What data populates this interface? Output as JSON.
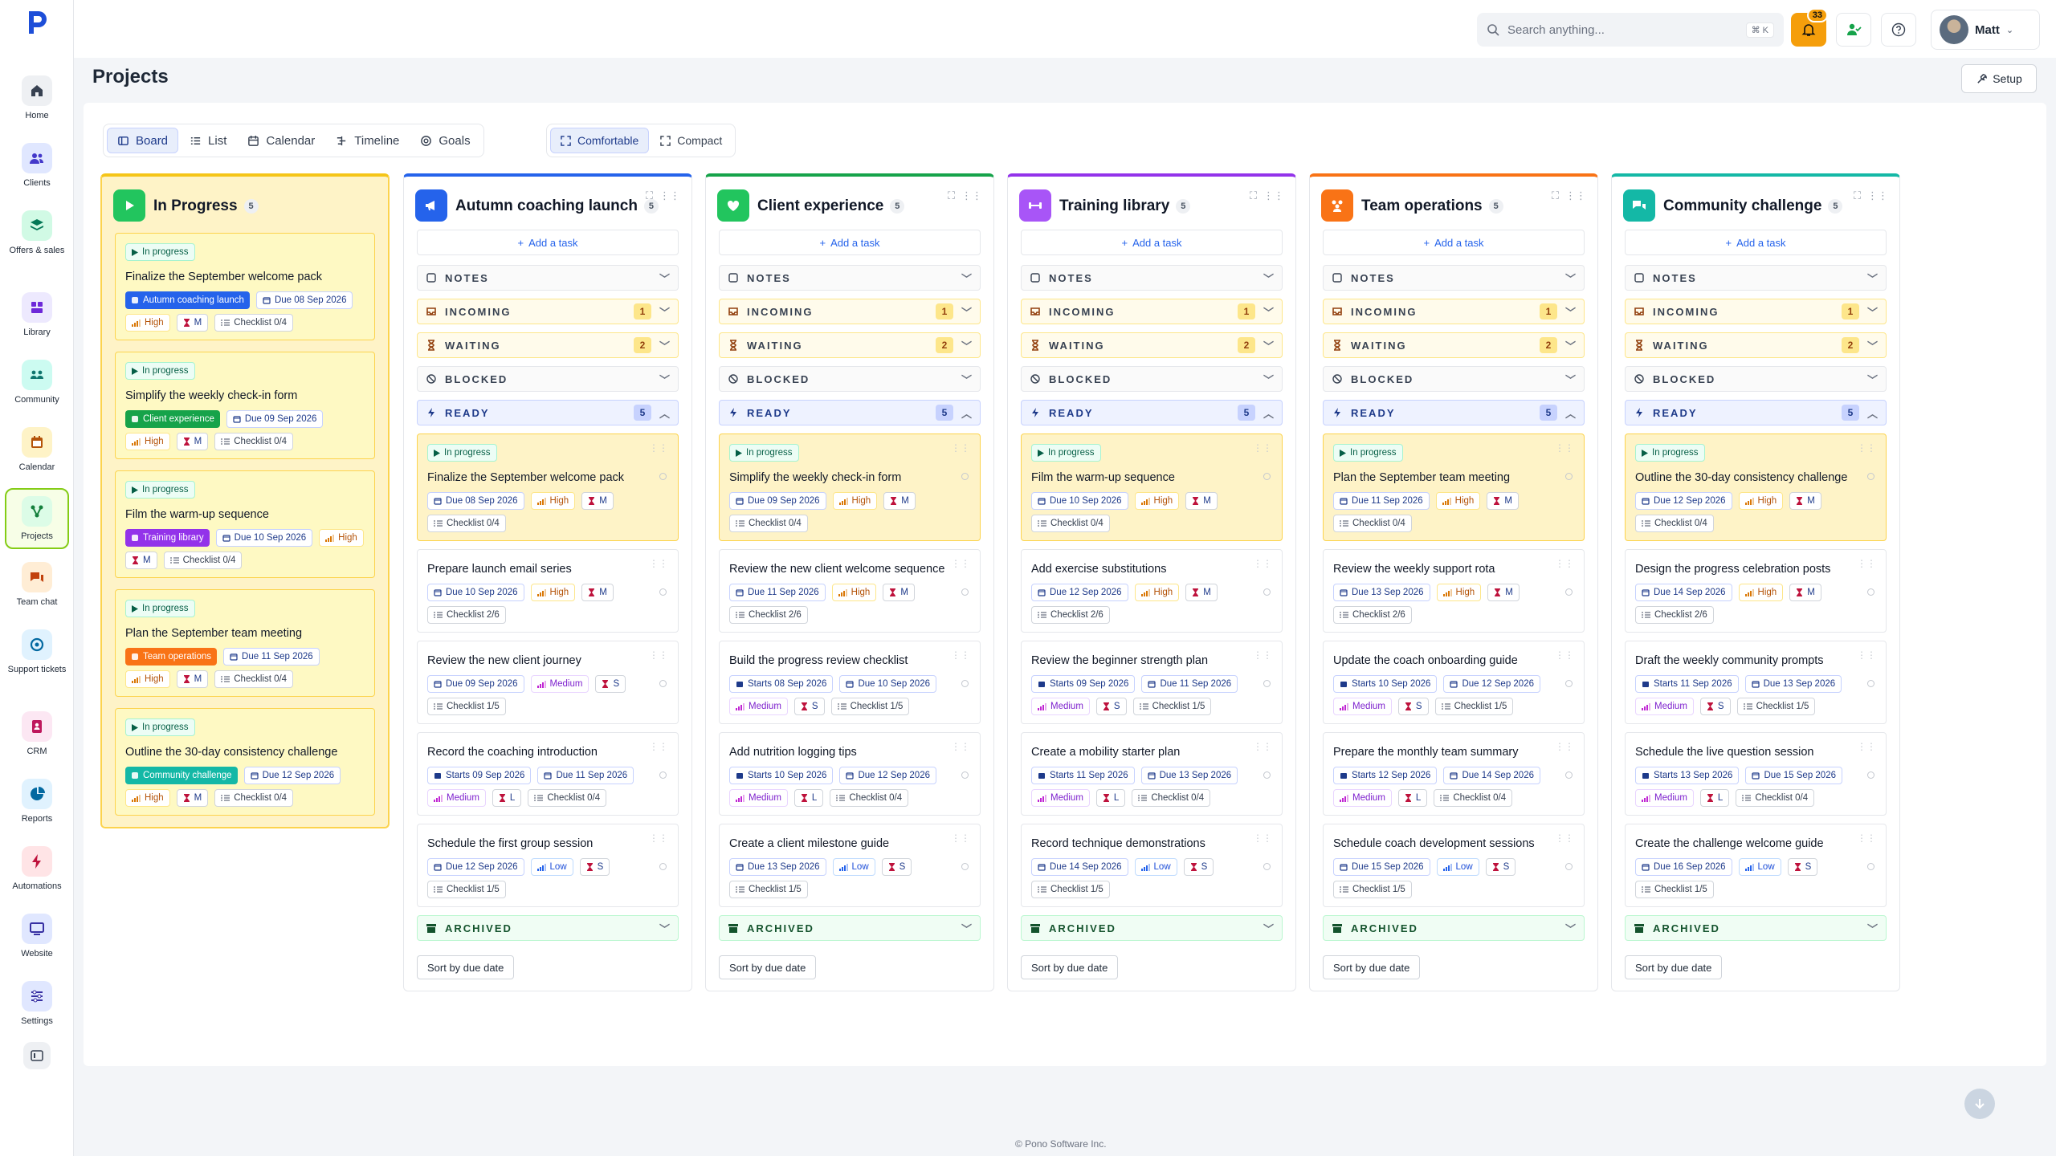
{
  "sidebar": {
    "items": [
      {
        "key": "home",
        "label": "Home",
        "tile": "#eef0f3",
        "fg": "#374151"
      },
      {
        "key": "clients",
        "label": "Clients",
        "tile": "#e0e7ff",
        "fg": "#4338ca"
      },
      {
        "key": "offers",
        "label": "Offers & sales",
        "tile": "#d1fae5",
        "fg": "#047857"
      },
      {
        "key": "library",
        "label": "Library",
        "tile": "#ede9fe",
        "fg": "#6d28d9"
      },
      {
        "key": "community",
        "label": "Community",
        "tile": "#ccfbf1",
        "fg": "#0f766e"
      },
      {
        "key": "calendar",
        "label": "Calendar",
        "tile": "#fef3c7",
        "fg": "#b45309"
      },
      {
        "key": "projects",
        "label": "Projects",
        "tile": "#dcfce7",
        "fg": "#15803d",
        "active": true
      },
      {
        "key": "team-chat",
        "label": "Team chat",
        "tile": "#ffedd5",
        "fg": "#c2410c"
      },
      {
        "key": "support",
        "label": "Support tickets",
        "tile": "#e0f2fe",
        "fg": "#0369a1"
      },
      {
        "key": "crm",
        "label": "CRM",
        "tile": "#fce7f3",
        "fg": "#be185d"
      },
      {
        "key": "reports",
        "label": "Reports",
        "tile": "#e0f2fe",
        "fg": "#0369a1"
      },
      {
        "key": "automations",
        "label": "Automations",
        "tile": "#ffe4e6",
        "fg": "#be123c"
      },
      {
        "key": "website",
        "label": "Website",
        "tile": "#e0e7ff",
        "fg": "#3730a3"
      },
      {
        "key": "settings",
        "label": "Settings",
        "tile": "#e0e7ff",
        "fg": "#3730a3"
      }
    ]
  },
  "topbar": {
    "search_placeholder": "Search anything...",
    "search_shortcut": "⌘ K",
    "notification_count": "33",
    "user_name": "Matt"
  },
  "page": {
    "title": "Projects",
    "setup_label": "Setup"
  },
  "views": [
    "Board",
    "List",
    "Calendar",
    "Timeline",
    "Goals"
  ],
  "density": [
    "Comfortable",
    "Compact"
  ],
  "labels": {
    "add_task": "Add a task",
    "notes": "NOTES",
    "incoming": "INCOMING",
    "waiting": "WAITING",
    "blocked": "BLOCKED",
    "ready": "READY",
    "archived": "ARCHIVED",
    "sort": "Sort by due date",
    "in_progress": "In progress"
  },
  "footer": "© Pono Software Inc.",
  "columns": [
    {
      "title": "In Progress",
      "count": "5",
      "accent": "#f5c518",
      "iconbg": "#22c55e",
      "featured": true,
      "cards": [
        {
          "status": "In progress",
          "title": "Finalize the September welcome pack",
          "project": "Autumn coaching launch",
          "projcolor": "#2563eb",
          "chips": [
            {
              "t": "date",
              "v": "Due 08 Sep 2026"
            },
            {
              "t": "high",
              "v": "High"
            },
            {
              "t": "size",
              "v": "M"
            },
            {
              "t": "check",
              "v": "Checklist 0/4"
            }
          ]
        },
        {
          "status": "In progress",
          "title": "Simplify the weekly check-in form",
          "project": "Client experience",
          "projcolor": "#16a34a",
          "chips": [
            {
              "t": "date",
              "v": "Due 09 Sep 2026"
            },
            {
              "t": "high",
              "v": "High"
            },
            {
              "t": "size",
              "v": "M"
            },
            {
              "t": "check",
              "v": "Checklist 0/4"
            }
          ]
        },
        {
          "status": "In progress",
          "title": "Film the warm-up sequence",
          "project": "Training library",
          "projcolor": "#9333ea",
          "chips": [
            {
              "t": "date",
              "v": "Due 10 Sep 2026"
            },
            {
              "t": "high",
              "v": "High"
            },
            {
              "t": "size",
              "v": "M"
            },
            {
              "t": "check",
              "v": "Checklist 0/4"
            }
          ]
        },
        {
          "status": "In progress",
          "title": "Plan the September team meeting",
          "project": "Team operations",
          "projcolor": "#f97316",
          "chips": [
            {
              "t": "date",
              "v": "Due 11 Sep 2026"
            },
            {
              "t": "high",
              "v": "High"
            },
            {
              "t": "size",
              "v": "M"
            },
            {
              "t": "check",
              "v": "Checklist 0/4"
            }
          ]
        },
        {
          "status": "In progress",
          "title": "Outline the 30-day consistency challenge",
          "project": "Community challenge",
          "projcolor": "#14b8a6",
          "chips": [
            {
              "t": "date",
              "v": "Due 12 Sep 2026"
            },
            {
              "t": "high",
              "v": "High"
            },
            {
              "t": "size",
              "v": "M"
            },
            {
              "t": "check",
              "v": "Checklist 0/4"
            }
          ]
        }
      ]
    },
    {
      "title": "Autumn coaching launch",
      "count": "5",
      "accent": "#2563eb",
      "iconbg": "#2563eb",
      "incoming": "1",
      "waiting": "2",
      "ready": "5",
      "cards": [
        {
          "status": "In progress",
          "title": "Finalize the September welcome pack",
          "chips": [
            {
              "t": "date",
              "v": "Due 08 Sep 2026"
            },
            {
              "t": "high",
              "v": "High"
            },
            {
              "t": "size",
              "v": "M"
            },
            {
              "t": "check",
              "v": "Checklist 0/4"
            }
          ]
        },
        {
          "title": "Prepare launch email series",
          "chips": [
            {
              "t": "date",
              "v": "Due 10 Sep 2026"
            },
            {
              "t": "high",
              "v": "High"
            },
            {
              "t": "size",
              "v": "M"
            },
            {
              "t": "check",
              "v": "Checklist 2/6"
            }
          ]
        },
        {
          "title": "Review the new client journey",
          "chips": [
            {
              "t": "date",
              "v": "Due 09 Sep 2026"
            },
            {
              "t": "med",
              "v": "Medium"
            },
            {
              "t": "size",
              "v": "S"
            },
            {
              "t": "check",
              "v": "Checklist 1/5"
            }
          ]
        },
        {
          "title": "Record the coaching introduction",
          "chips": [
            {
              "t": "start",
              "v": "Starts 09 Sep 2026"
            },
            {
              "t": "date",
              "v": "Due 11 Sep 2026"
            },
            {
              "t": "med",
              "v": "Medium"
            },
            {
              "t": "size",
              "v": "L"
            },
            {
              "t": "check",
              "v": "Checklist 0/4"
            }
          ]
        },
        {
          "title": "Schedule the first group session",
          "chips": [
            {
              "t": "date",
              "v": "Due 12 Sep 2026"
            },
            {
              "t": "low",
              "v": "Low"
            },
            {
              "t": "size",
              "v": "S"
            },
            {
              "t": "check",
              "v": "Checklist 1/5"
            }
          ]
        }
      ]
    },
    {
      "title": "Client experience",
      "count": "5",
      "accent": "#16a34a",
      "iconbg": "#22c55e",
      "incoming": "1",
      "waiting": "2",
      "ready": "5",
      "cards": [
        {
          "status": "In progress",
          "title": "Simplify the weekly check-in form",
          "chips": [
            {
              "t": "date",
              "v": "Due 09 Sep 2026"
            },
            {
              "t": "high",
              "v": "High"
            },
            {
              "t": "size",
              "v": "M"
            },
            {
              "t": "check",
              "v": "Checklist 0/4"
            }
          ]
        },
        {
          "title": "Review the new client welcome sequence",
          "chips": [
            {
              "t": "date",
              "v": "Due 11 Sep 2026"
            },
            {
              "t": "high",
              "v": "High"
            },
            {
              "t": "size",
              "v": "M"
            },
            {
              "t": "check",
              "v": "Checklist 2/6"
            }
          ]
        },
        {
          "title": "Build the progress review checklist",
          "chips": [
            {
              "t": "start",
              "v": "Starts 08 Sep 2026"
            },
            {
              "t": "date",
              "v": "Due 10 Sep 2026"
            },
            {
              "t": "med",
              "v": "Medium"
            },
            {
              "t": "size",
              "v": "S"
            },
            {
              "t": "check",
              "v": "Checklist 1/5"
            }
          ]
        },
        {
          "title": "Add nutrition logging tips",
          "chips": [
            {
              "t": "start",
              "v": "Starts 10 Sep 2026"
            },
            {
              "t": "date",
              "v": "Due 12 Sep 2026"
            },
            {
              "t": "med",
              "v": "Medium"
            },
            {
              "t": "size",
              "v": "L"
            },
            {
              "t": "check",
              "v": "Checklist 0/4"
            }
          ]
        },
        {
          "title": "Create a client milestone guide",
          "chips": [
            {
              "t": "date",
              "v": "Due 13 Sep 2026"
            },
            {
              "t": "low",
              "v": "Low"
            },
            {
              "t": "size",
              "v": "S"
            },
            {
              "t": "check",
              "v": "Checklist 1/5"
            }
          ]
        }
      ]
    },
    {
      "title": "Training library",
      "count": "5",
      "accent": "#9333ea",
      "iconbg": "#a855f7",
      "incoming": "1",
      "waiting": "2",
      "ready": "5",
      "cards": [
        {
          "status": "In progress",
          "title": "Film the warm-up sequence",
          "chips": [
            {
              "t": "date",
              "v": "Due 10 Sep 2026"
            },
            {
              "t": "high",
              "v": "High"
            },
            {
              "t": "size",
              "v": "M"
            },
            {
              "t": "check",
              "v": "Checklist 0/4"
            }
          ]
        },
        {
          "title": "Add exercise substitutions",
          "chips": [
            {
              "t": "date",
              "v": "Due 12 Sep 2026"
            },
            {
              "t": "high",
              "v": "High"
            },
            {
              "t": "size",
              "v": "M"
            },
            {
              "t": "check",
              "v": "Checklist 2/6"
            }
          ]
        },
        {
          "title": "Review the beginner strength plan",
          "chips": [
            {
              "t": "start",
              "v": "Starts 09 Sep 2026"
            },
            {
              "t": "date",
              "v": "Due 11 Sep 2026"
            },
            {
              "t": "med",
              "v": "Medium"
            },
            {
              "t": "size",
              "v": "S"
            },
            {
              "t": "check",
              "v": "Checklist 1/5"
            }
          ]
        },
        {
          "title": "Create a mobility starter plan",
          "chips": [
            {
              "t": "start",
              "v": "Starts 11 Sep 2026"
            },
            {
              "t": "date",
              "v": "Due 13 Sep 2026"
            },
            {
              "t": "med",
              "v": "Medium"
            },
            {
              "t": "size",
              "v": "L"
            },
            {
              "t": "check",
              "v": "Checklist 0/4"
            }
          ]
        },
        {
          "title": "Record technique demonstrations",
          "chips": [
            {
              "t": "date",
              "v": "Due 14 Sep 2026"
            },
            {
              "t": "low",
              "v": "Low"
            },
            {
              "t": "size",
              "v": "S"
            },
            {
              "t": "check",
              "v": "Checklist 1/5"
            }
          ]
        }
      ]
    },
    {
      "title": "Team operations",
      "count": "5",
      "accent": "#f97316",
      "iconbg": "#f97316",
      "incoming": "1",
      "waiting": "2",
      "ready": "5",
      "cards": [
        {
          "status": "In progress",
          "title": "Plan the September team meeting",
          "chips": [
            {
              "t": "date",
              "v": "Due 11 Sep 2026"
            },
            {
              "t": "high",
              "v": "High"
            },
            {
              "t": "size",
              "v": "M"
            },
            {
              "t": "check",
              "v": "Checklist 0/4"
            }
          ]
        },
        {
          "title": "Review the weekly support rota",
          "chips": [
            {
              "t": "date",
              "v": "Due 13 Sep 2026"
            },
            {
              "t": "high",
              "v": "High"
            },
            {
              "t": "size",
              "v": "M"
            },
            {
              "t": "check",
              "v": "Checklist 2/6"
            }
          ]
        },
        {
          "title": "Update the coach onboarding guide",
          "chips": [
            {
              "t": "start",
              "v": "Starts 10 Sep 2026"
            },
            {
              "t": "date",
              "v": "Due 12 Sep 2026"
            },
            {
              "t": "med",
              "v": "Medium"
            },
            {
              "t": "size",
              "v": "S"
            },
            {
              "t": "check",
              "v": "Checklist 1/5"
            }
          ]
        },
        {
          "title": "Prepare the monthly team summary",
          "chips": [
            {
              "t": "start",
              "v": "Starts 12 Sep 2026"
            },
            {
              "t": "date",
              "v": "Due 14 Sep 2026"
            },
            {
              "t": "med",
              "v": "Medium"
            },
            {
              "t": "size",
              "v": "L"
            },
            {
              "t": "check",
              "v": "Checklist 0/4"
            }
          ]
        },
        {
          "title": "Schedule coach development sessions",
          "chips": [
            {
              "t": "date",
              "v": "Due 15 Sep 2026"
            },
            {
              "t": "low",
              "v": "Low"
            },
            {
              "t": "size",
              "v": "S"
            },
            {
              "t": "check",
              "v": "Checklist 1/5"
            }
          ]
        }
      ]
    },
    {
      "title": "Community challenge",
      "count": "5",
      "accent": "#14b8a6",
      "iconbg": "#14b8a6",
      "incoming": "1",
      "waiting": "2",
      "ready": "5",
      "cards": [
        {
          "status": "In progress",
          "title": "Outline the 30-day consistency challenge",
          "chips": [
            {
              "t": "date",
              "v": "Due 12 Sep 2026"
            },
            {
              "t": "high",
              "v": "High"
            },
            {
              "t": "size",
              "v": "M"
            },
            {
              "t": "check",
              "v": "Checklist 0/4"
            }
          ]
        },
        {
          "title": "Design the progress celebration posts",
          "chips": [
            {
              "t": "date",
              "v": "Due 14 Sep 2026"
            },
            {
              "t": "high",
              "v": "High"
            },
            {
              "t": "size",
              "v": "M"
            },
            {
              "t": "check",
              "v": "Checklist 2/6"
            }
          ]
        },
        {
          "title": "Draft the weekly community prompts",
          "chips": [
            {
              "t": "start",
              "v": "Starts 11 Sep 2026"
            },
            {
              "t": "date",
              "v": "Due 13 Sep 2026"
            },
            {
              "t": "med",
              "v": "Medium"
            },
            {
              "t": "size",
              "v": "S"
            },
            {
              "t": "check",
              "v": "Checklist 1/5"
            }
          ]
        },
        {
          "title": "Schedule the live question session",
          "chips": [
            {
              "t": "start",
              "v": "Starts 13 Sep 2026"
            },
            {
              "t": "date",
              "v": "Due 15 Sep 2026"
            },
            {
              "t": "med",
              "v": "Medium"
            },
            {
              "t": "size",
              "v": "L"
            },
            {
              "t": "check",
              "v": "Checklist 0/4"
            }
          ]
        },
        {
          "title": "Create the challenge welcome guide",
          "chips": [
            {
              "t": "date",
              "v": "Due 16 Sep 2026"
            },
            {
              "t": "low",
              "v": "Low"
            },
            {
              "t": "size",
              "v": "S"
            },
            {
              "t": "check",
              "v": "Checklist 1/5"
            }
          ]
        }
      ]
    }
  ]
}
